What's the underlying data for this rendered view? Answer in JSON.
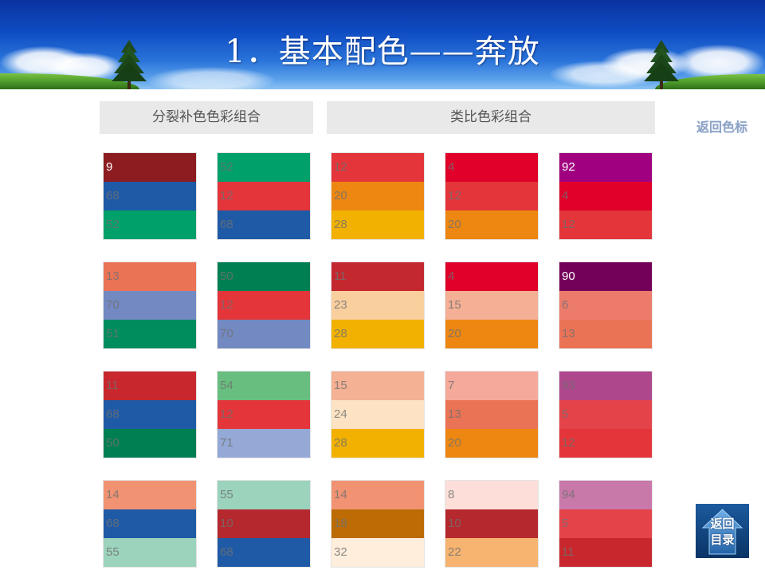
{
  "title": "1．基本配色——奔放",
  "sections": {
    "split_complementary": "分裂补色色彩组合",
    "analogous": "类比色彩组合"
  },
  "back_link": "返回色标",
  "nav_button": {
    "line1": "返回",
    "line2": "目录",
    "icon": "home-icon"
  },
  "colors": {
    "section_header_bg": "#E9E9E9",
    "section_header_text": "#555555",
    "link": "#8DA4C9",
    "title": "#FFFFFF"
  },
  "palettes": [
    {
      "bands": [
        {
          "value": "9",
          "color": "#8C1C20",
          "text_color": "#FFFFFF"
        },
        {
          "value": "68",
          "color": "#1F5AA6"
        },
        {
          "value": "52",
          "color": "#00A06A"
        }
      ]
    },
    {
      "bands": [
        {
          "value": "52",
          "color": "#00A06A"
        },
        {
          "value": "12",
          "color": "#E3353A"
        },
        {
          "value": "68",
          "color": "#1F5AA6"
        }
      ]
    },
    {
      "bands": [
        {
          "value": "12",
          "color": "#E3353A"
        },
        {
          "value": "20",
          "color": "#ED8711"
        },
        {
          "value": "28",
          "color": "#F2B100"
        }
      ]
    },
    {
      "bands": [
        {
          "value": "4",
          "color": "#E0002A"
        },
        {
          "value": "12",
          "color": "#E3353A"
        },
        {
          "value": "20",
          "color": "#ED8711"
        }
      ]
    },
    {
      "bands": [
        {
          "value": "92",
          "color": "#A0007F",
          "text_color": "#FFFFFF"
        },
        {
          "value": "4",
          "color": "#E0002A"
        },
        {
          "value": "12",
          "color": "#E3353A"
        }
      ]
    },
    {
      "bands": [
        {
          "value": "13",
          "color": "#EB7355"
        },
        {
          "value": "70",
          "color": "#7389C2"
        },
        {
          "value": "51",
          "color": "#008D5E"
        }
      ]
    },
    {
      "bands": [
        {
          "value": "50",
          "color": "#007F52"
        },
        {
          "value": "12",
          "color": "#E3353A"
        },
        {
          "value": "70",
          "color": "#7389C2"
        }
      ]
    },
    {
      "bands": [
        {
          "value": "11",
          "color": "#C4282F"
        },
        {
          "value": "23",
          "color": "#F9CF9E"
        },
        {
          "value": "28",
          "color": "#F2B100"
        }
      ]
    },
    {
      "bands": [
        {
          "value": "4",
          "color": "#E0002A"
        },
        {
          "value": "15",
          "color": "#F5AF94"
        },
        {
          "value": "20",
          "color": "#ED8711"
        }
      ]
    },
    {
      "bands": [
        {
          "value": "90",
          "color": "#730059",
          "text_color": "#FFFFFF"
        },
        {
          "value": "6",
          "color": "#EC7B6C"
        },
        {
          "value": "13",
          "color": "#EB7355"
        }
      ]
    },
    {
      "bands": [
        {
          "value": "11",
          "color": "#C8282D"
        },
        {
          "value": "68",
          "color": "#1F5AA6"
        },
        {
          "value": "50",
          "color": "#007F52"
        }
      ]
    },
    {
      "bands": [
        {
          "value": "54",
          "color": "#68BE7F"
        },
        {
          "value": "12",
          "color": "#E3353A"
        },
        {
          "value": "71",
          "color": "#94A9D6"
        }
      ]
    },
    {
      "bands": [
        {
          "value": "15",
          "color": "#F5B194"
        },
        {
          "value": "24",
          "color": "#FDE3C4"
        },
        {
          "value": "28",
          "color": "#F2B100"
        }
      ]
    },
    {
      "bands": [
        {
          "value": "7",
          "color": "#F5A99A"
        },
        {
          "value": "13",
          "color": "#EB7355"
        },
        {
          "value": "20",
          "color": "#ED8711"
        }
      ]
    },
    {
      "bands": [
        {
          "value": "93",
          "color": "#AE478C"
        },
        {
          "value": "5",
          "color": "#E4434A"
        },
        {
          "value": "12",
          "color": "#E3353A"
        }
      ]
    },
    {
      "bands": [
        {
          "value": "14",
          "color": "#F19373"
        },
        {
          "value": "68",
          "color": "#1F5AA6"
        },
        {
          "value": "55",
          "color": "#9BD3BC"
        }
      ]
    },
    {
      "bands": [
        {
          "value": "55",
          "color": "#9BD3BC"
        },
        {
          "value": "10",
          "color": "#B5282E"
        },
        {
          "value": "68",
          "color": "#1F5AA6"
        }
      ]
    },
    {
      "bands": [
        {
          "value": "14",
          "color": "#F19373"
        },
        {
          "value": "18",
          "color": "#BC6B05"
        },
        {
          "value": "32",
          "color": "#FEEEDB"
        }
      ]
    },
    {
      "bands": [
        {
          "value": "8",
          "color": "#FDDED8"
        },
        {
          "value": "10",
          "color": "#B5282E"
        },
        {
          "value": "22",
          "color": "#F6B470"
        }
      ]
    },
    {
      "bands": [
        {
          "value": "94",
          "color": "#C878A9"
        },
        {
          "value": "5",
          "color": "#E4434A"
        },
        {
          "value": "11",
          "color": "#C8282D"
        }
      ]
    }
  ]
}
